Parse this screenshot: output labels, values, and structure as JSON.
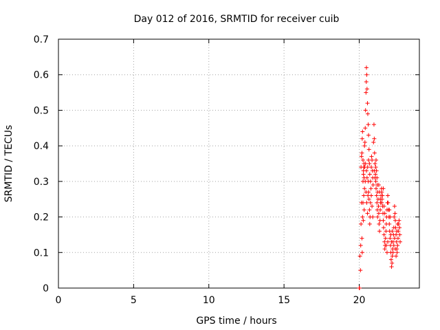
{
  "chart_data": {
    "type": "scatter",
    "title": "Day 012 of 2016, SRMTID for receiver cuib",
    "xlabel": "GPS time / hours",
    "ylabel": "SRMTID / TECUs",
    "xlim": [
      0,
      24
    ],
    "ylim": [
      0,
      0.7
    ],
    "xticks": [
      0,
      5,
      10,
      15,
      20
    ],
    "yticks": [
      0,
      0.1,
      0.2,
      0.3,
      0.4,
      0.5,
      0.6,
      0.7
    ],
    "xtick_labels": [
      "0",
      "5",
      "10",
      "15",
      "20"
    ],
    "ytick_labels": [
      "0",
      "0.1",
      "0.2",
      "0.3",
      "0.4",
      "0.5",
      "0.6",
      "0.7"
    ],
    "grid": true,
    "marker": "+",
    "color": "#ff0000",
    "series": [
      {
        "name": "SRMTID",
        "points": [
          [
            20.0,
            0.0
          ],
          [
            20.02,
            0.0
          ],
          [
            20.05,
            0.09
          ],
          [
            20.08,
            0.05
          ],
          [
            20.1,
            0.12
          ],
          [
            20.12,
            0.18
          ],
          [
            20.15,
            0.24
          ],
          [
            20.18,
            0.14
          ],
          [
            20.2,
            0.1
          ],
          [
            20.22,
            0.2
          ],
          [
            20.25,
            0.24
          ],
          [
            20.27,
            0.19
          ],
          [
            20.3,
            0.34
          ],
          [
            20.32,
            0.31
          ],
          [
            20.35,
            0.28
          ],
          [
            20.12,
            0.34
          ],
          [
            20.15,
            0.37
          ],
          [
            20.18,
            0.38
          ],
          [
            20.2,
            0.42
          ],
          [
            20.22,
            0.44
          ],
          [
            20.25,
            0.36
          ],
          [
            20.28,
            0.33
          ],
          [
            20.3,
            0.26
          ],
          [
            20.33,
            0.22
          ],
          [
            20.35,
            0.4
          ],
          [
            20.38,
            0.41
          ],
          [
            20.4,
            0.45
          ],
          [
            20.42,
            0.5
          ],
          [
            20.45,
            0.55
          ],
          [
            20.47,
            0.58
          ],
          [
            20.48,
            0.62
          ],
          [
            20.5,
            0.6
          ],
          [
            20.52,
            0.56
          ],
          [
            20.55,
            0.52
          ],
          [
            20.57,
            0.49
          ],
          [
            20.6,
            0.46
          ],
          [
            20.62,
            0.43
          ],
          [
            20.65,
            0.39
          ],
          [
            20.6,
            0.3
          ],
          [
            20.62,
            0.27
          ],
          [
            20.65,
            0.25
          ],
          [
            20.68,
            0.22
          ],
          [
            20.7,
            0.18
          ],
          [
            20.72,
            0.2
          ],
          [
            20.75,
            0.24
          ],
          [
            20.78,
            0.28
          ],
          [
            20.8,
            0.34
          ],
          [
            20.82,
            0.37
          ],
          [
            20.85,
            0.36
          ],
          [
            20.88,
            0.33
          ],
          [
            20.9,
            0.31
          ],
          [
            20.92,
            0.29
          ],
          [
            20.95,
            0.41
          ],
          [
            20.98,
            0.46
          ],
          [
            21.0,
            0.42
          ],
          [
            21.02,
            0.38
          ],
          [
            21.05,
            0.35
          ],
          [
            21.08,
            0.32
          ],
          [
            21.1,
            0.3
          ],
          [
            21.12,
            0.28
          ],
          [
            21.15,
            0.26
          ],
          [
            21.18,
            0.24
          ],
          [
            21.2,
            0.22
          ],
          [
            21.22,
            0.2
          ],
          [
            21.1,
            0.34
          ],
          [
            21.12,
            0.36
          ],
          [
            21.15,
            0.33
          ],
          [
            21.18,
            0.31
          ],
          [
            21.2,
            0.29
          ],
          [
            21.22,
            0.27
          ],
          [
            21.25,
            0.25
          ],
          [
            21.28,
            0.23
          ],
          [
            21.3,
            0.21
          ],
          [
            21.32,
            0.18
          ],
          [
            21.35,
            0.16
          ],
          [
            21.38,
            0.19
          ],
          [
            21.4,
            0.22
          ],
          [
            21.42,
            0.24
          ],
          [
            21.45,
            0.26
          ],
          [
            21.48,
            0.28
          ],
          [
            21.5,
            0.27
          ],
          [
            21.52,
            0.25
          ],
          [
            21.55,
            0.23
          ],
          [
            21.58,
            0.21
          ],
          [
            21.6,
            0.19
          ],
          [
            21.62,
            0.17
          ],
          [
            21.65,
            0.15
          ],
          [
            21.68,
            0.13
          ],
          [
            21.7,
            0.11
          ],
          [
            21.72,
            0.12
          ],
          [
            21.75,
            0.14
          ],
          [
            21.78,
            0.16
          ],
          [
            21.8,
            0.18
          ],
          [
            21.82,
            0.2
          ],
          [
            21.85,
            0.22
          ],
          [
            21.88,
            0.24
          ],
          [
            21.9,
            0.26
          ],
          [
            21.92,
            0.24
          ],
          [
            21.95,
            0.22
          ],
          [
            21.98,
            0.2
          ],
          [
            22.0,
            0.18
          ],
          [
            22.02,
            0.16
          ],
          [
            22.05,
            0.14
          ],
          [
            22.08,
            0.12
          ],
          [
            22.1,
            0.1
          ],
          [
            22.12,
            0.08
          ],
          [
            22.15,
            0.06
          ],
          [
            22.18,
            0.07
          ],
          [
            22.2,
            0.09
          ],
          [
            22.22,
            0.11
          ],
          [
            22.25,
            0.13
          ],
          [
            22.28,
            0.15
          ],
          [
            22.3,
            0.17
          ],
          [
            22.32,
            0.2
          ],
          [
            22.35,
            0.23
          ],
          [
            22.38,
            0.21
          ],
          [
            22.4,
            0.19
          ],
          [
            22.42,
            0.17
          ],
          [
            22.45,
            0.15
          ],
          [
            22.48,
            0.13
          ],
          [
            22.5,
            0.11
          ],
          [
            22.52,
            0.1
          ],
          [
            22.55,
            0.12
          ],
          [
            22.58,
            0.14
          ],
          [
            22.6,
            0.16
          ],
          [
            22.62,
            0.18
          ],
          [
            22.65,
            0.19
          ],
          [
            22.68,
            0.17
          ],
          [
            22.7,
            0.15
          ],
          [
            22.72,
            0.13
          ],
          [
            20.4,
            0.3
          ],
          [
            20.45,
            0.27
          ],
          [
            20.5,
            0.24
          ],
          [
            20.55,
            0.21
          ],
          [
            20.58,
            0.26
          ],
          [
            20.7,
            0.32
          ],
          [
            20.75,
            0.3
          ],
          [
            20.8,
            0.26
          ],
          [
            20.85,
            0.23
          ],
          [
            20.9,
            0.2
          ],
          [
            21.0,
            0.33
          ],
          [
            21.05,
            0.31
          ],
          [
            21.3,
            0.29
          ],
          [
            21.35,
            0.27
          ],
          [
            21.4,
            0.25
          ],
          [
            21.5,
            0.24
          ],
          [
            21.55,
            0.26
          ],
          [
            21.6,
            0.28
          ],
          [
            21.65,
            0.23
          ],
          [
            21.7,
            0.21
          ],
          [
            21.8,
            0.12
          ],
          [
            21.85,
            0.1
          ],
          [
            21.9,
            0.13
          ],
          [
            22.0,
            0.22
          ],
          [
            22.05,
            0.2
          ],
          [
            22.1,
            0.15
          ],
          [
            22.15,
            0.13
          ],
          [
            22.2,
            0.16
          ],
          [
            22.25,
            0.1
          ],
          [
            22.3,
            0.12
          ],
          [
            22.35,
            0.14
          ],
          [
            22.4,
            0.11
          ],
          [
            22.45,
            0.09
          ],
          [
            22.5,
            0.16
          ],
          [
            22.55,
            0.18
          ],
          [
            20.25,
            0.3
          ],
          [
            20.28,
            0.32
          ],
          [
            20.32,
            0.35
          ],
          [
            20.36,
            0.34
          ],
          [
            20.42,
            0.35
          ],
          [
            20.48,
            0.33
          ],
          [
            20.52,
            0.31
          ],
          [
            20.56,
            0.34
          ],
          [
            20.62,
            0.36
          ],
          [
            20.68,
            0.35
          ]
        ]
      }
    ]
  }
}
